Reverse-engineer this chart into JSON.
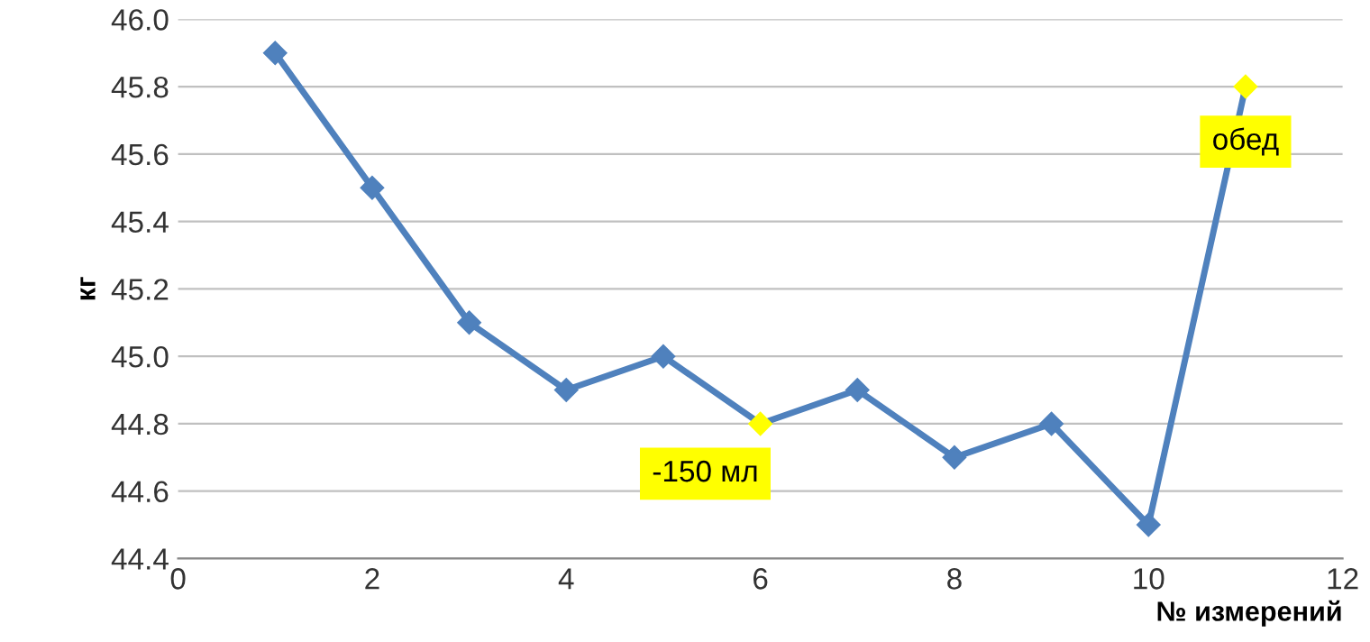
{
  "chart_data": {
    "type": "line",
    "xlabel": "№ измерений",
    "ylabel": "кг",
    "x": [
      1,
      2,
      3,
      4,
      5,
      6,
      7,
      8,
      9,
      10,
      11
    ],
    "series": [
      {
        "color": "#4f81bd",
        "values": [
          45.9,
          45.5,
          45.1,
          44.9,
          45.0,
          44.8,
          44.9,
          44.7,
          44.8,
          44.5,
          45.8
        ],
        "colors": [
          "#4f81bd",
          "#4f81bd",
          "#4f81bd",
          "#4f81bd",
          "#4f81bd",
          "#ffff00",
          "#4f81bd",
          "#4f81bd",
          "#4f81bd",
          "#4f81bd",
          "#ffff00"
        ]
      }
    ],
    "annotations": [
      {
        "text": "-150 мл",
        "x": 6,
        "y": 44.8
      },
      {
        "text": "обед",
        "x": 11,
        "y": 45.8
      }
    ],
    "xlim": [
      0,
      12
    ],
    "xticks": [
      0,
      2,
      4,
      6,
      8,
      10,
      12
    ],
    "ylim": [
      44.4,
      46.0
    ],
    "yticks": [
      {
        "value": 44.4,
        "label": "44.4"
      },
      {
        "value": 44.6,
        "label": "44.6"
      },
      {
        "value": 44.8,
        "label": "44.8"
      },
      {
        "value": 45.0,
        "label": "45.0"
      },
      {
        "value": 45.2,
        "label": "45.2"
      },
      {
        "value": 45.4,
        "label": "45.4"
      },
      {
        "value": 45.6,
        "label": "45.6"
      },
      {
        "value": 45.8,
        "label": "45.8"
      },
      {
        "value": 46.0,
        "label": "46.0"
      }
    ],
    "grid": "y",
    "marker": "diamond",
    "line_style": "solid",
    "legend": false
  }
}
